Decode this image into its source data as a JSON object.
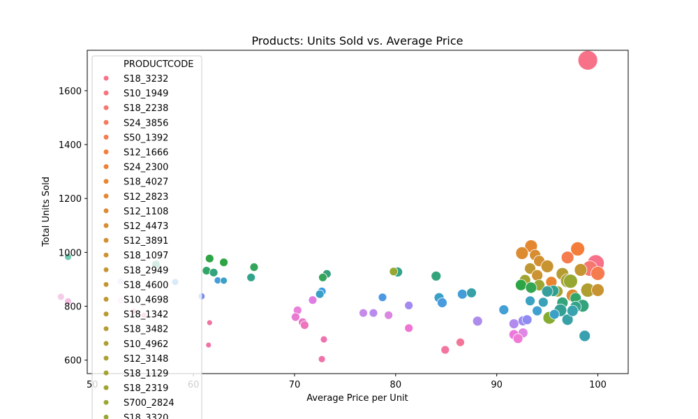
{
  "chart_data": {
    "type": "scatter",
    "title": "Products: Units Sold vs. Average Price",
    "xlabel": "Average Price per Unit",
    "ylabel": "Total Units Sold",
    "xlim": [
      49.5,
      103
    ],
    "ylim": [
      550,
      1750
    ],
    "xticks": [
      50,
      60,
      70,
      80,
      90,
      100
    ],
    "yticks": [
      600,
      800,
      1000,
      1200,
      1400,
      1600
    ],
    "grid": false,
    "legend": {
      "title": "PRODUCTCODE",
      "placement": "upper-left",
      "entries": [
        {
          "label": "S18_3232",
          "color": "#f77189"
        },
        {
          "label": "S10_1949",
          "color": "#f7737d"
        },
        {
          "label": "S18_2238",
          "color": "#f7766f"
        },
        {
          "label": "S24_3856",
          "color": "#f67960"
        },
        {
          "label": "S50_1392",
          "color": "#f67c4f"
        },
        {
          "label": "S12_1666",
          "color": "#f47e39"
        },
        {
          "label": "S24_2300",
          "color": "#ef8132"
        },
        {
          "label": "S18_4027",
          "color": "#e98531"
        },
        {
          "label": "S12_2823",
          "color": "#e38831"
        },
        {
          "label": "S12_1108",
          "color": "#dd8b31"
        },
        {
          "label": "S12_4473",
          "color": "#d88d31"
        },
        {
          "label": "S12_3891",
          "color": "#d29031"
        },
        {
          "label": "S18_1097",
          "color": "#cd9231"
        },
        {
          "label": "S18_2949",
          "color": "#c89431"
        },
        {
          "label": "S18_4600",
          "color": "#c39632"
        },
        {
          "label": "S10_4698",
          "color": "#be9832"
        },
        {
          "label": "S18_1342",
          "color": "#b99a32"
        },
        {
          "label": "S18_3482",
          "color": "#b49c32"
        },
        {
          "label": "S10_4962",
          "color": "#b09e32"
        },
        {
          "label": "S12_3148",
          "color": "#aba032"
        },
        {
          "label": "S18_1129",
          "color": "#a6a232"
        },
        {
          "label": "S18_2319",
          "color": "#a1a432"
        },
        {
          "label": "S700_2824",
          "color": "#9ca632"
        },
        {
          "label": "S18_3320",
          "color": "#97a832"
        }
      ]
    },
    "size_note": "marker size scales with total units sold",
    "points": [
      {
        "x": 99.0,
        "y": 1713,
        "color": "#f77189",
        "size": 14
      },
      {
        "x": 99.8,
        "y": 960,
        "color": "#f77189",
        "size": 12
      },
      {
        "x": 99.2,
        "y": 940,
        "color": "#f7766f",
        "size": 11
      },
      {
        "x": 100.0,
        "y": 922,
        "color": "#f67c4f",
        "size": 10
      },
      {
        "x": 98.0,
        "y": 1013,
        "color": "#f47e39",
        "size": 10
      },
      {
        "x": 97.0,
        "y": 981,
        "color": "#f67c4f",
        "size": 9
      },
      {
        "x": 93.4,
        "y": 1023,
        "color": "#e38831",
        "size": 9
      },
      {
        "x": 92.5,
        "y": 997,
        "color": "#dd8b31",
        "size": 9
      },
      {
        "x": 93.8,
        "y": 990,
        "color": "#d88d31",
        "size": 8
      },
      {
        "x": 94.2,
        "y": 968,
        "color": "#d29031",
        "size": 8
      },
      {
        "x": 95.0,
        "y": 948,
        "color": "#c89431",
        "size": 9
      },
      {
        "x": 93.3,
        "y": 940,
        "color": "#be9832",
        "size": 8
      },
      {
        "x": 96.5,
        "y": 920,
        "color": "#b49c32",
        "size": 9
      },
      {
        "x": 98.3,
        "y": 935,
        "color": "#c39632",
        "size": 9
      },
      {
        "x": 97.0,
        "y": 895,
        "color": "#aba032",
        "size": 10
      },
      {
        "x": 99.0,
        "y": 860,
        "color": "#b09e32",
        "size": 10
      },
      {
        "x": 100.0,
        "y": 860,
        "color": "#c89431",
        "size": 9
      },
      {
        "x": 97.5,
        "y": 840,
        "color": "#dd8b31",
        "size": 9
      },
      {
        "x": 95.4,
        "y": 890,
        "color": "#e98531",
        "size": 8
      },
      {
        "x": 94.0,
        "y": 915,
        "color": "#cd9231",
        "size": 8
      },
      {
        "x": 92.8,
        "y": 897,
        "color": "#a1a432",
        "size": 8
      },
      {
        "x": 96.0,
        "y": 855,
        "color": "#a6a232",
        "size": 8
      },
      {
        "x": 94.2,
        "y": 878,
        "color": "#9ca632",
        "size": 8
      },
      {
        "x": 92.4,
        "y": 879,
        "color": "#2ea545",
        "size": 8
      },
      {
        "x": 93.4,
        "y": 869,
        "color": "#34a552",
        "size": 8
      },
      {
        "x": 97.8,
        "y": 830,
        "color": "#32a668",
        "size": 8
      },
      {
        "x": 96.5,
        "y": 813,
        "color": "#33a47b",
        "size": 8
      },
      {
        "x": 98.5,
        "y": 802,
        "color": "#35a27e",
        "size": 9
      },
      {
        "x": 97.8,
        "y": 798,
        "color": "#33a38a",
        "size": 8
      },
      {
        "x": 96.3,
        "y": 785,
        "color": "#34a094",
        "size": 9
      },
      {
        "x": 95.6,
        "y": 857,
        "color": "#2ea18f",
        "size": 8
      },
      {
        "x": 95.0,
        "y": 855,
        "color": "#37a09d",
        "size": 8
      },
      {
        "x": 97.3,
        "y": 893,
        "color": "#97a832",
        "size": 10
      },
      {
        "x": 95.2,
        "y": 757,
        "color": "#85ab31",
        "size": 9
      },
      {
        "x": 97.0,
        "y": 750,
        "color": "#37a1a6",
        "size": 8
      },
      {
        "x": 98.7,
        "y": 690,
        "color": "#38a0b0",
        "size": 8
      },
      {
        "x": 97.5,
        "y": 783,
        "color": "#38a2af",
        "size": 8
      },
      {
        "x": 94.6,
        "y": 815,
        "color": "#3aa2b8",
        "size": 7
      },
      {
        "x": 93.3,
        "y": 820,
        "color": "#3ba2c1",
        "size": 7
      },
      {
        "x": 95.7,
        "y": 770,
        "color": "#3ba0c7",
        "size": 7
      },
      {
        "x": 94.0,
        "y": 783,
        "color": "#40a0d0",
        "size": 7
      },
      {
        "x": 90.7,
        "y": 787,
        "color": "#439fd6",
        "size": 7
      },
      {
        "x": 86.6,
        "y": 845,
        "color": "#449dd9",
        "size": 7
      },
      {
        "x": 87.5,
        "y": 850,
        "color": "#37a1a6",
        "size": 7
      },
      {
        "x": 84.3,
        "y": 832,
        "color": "#3ba0c7",
        "size": 7
      },
      {
        "x": 84.6,
        "y": 813,
        "color": "#499bdd",
        "size": 7
      },
      {
        "x": 84.0,
        "y": 912,
        "color": "#33a47b",
        "size": 7
      },
      {
        "x": 80.2,
        "y": 927,
        "color": "#33a38a",
        "size": 7
      },
      {
        "x": 79.8,
        "y": 929,
        "color": "#97a832",
        "size": 6
      },
      {
        "x": 78.7,
        "y": 833,
        "color": "#4d98e2",
        "size": 6
      },
      {
        "x": 73.2,
        "y": 920,
        "color": "#35a07c",
        "size": 6
      },
      {
        "x": 72.8,
        "y": 907,
        "color": "#34a55a",
        "size": 6
      },
      {
        "x": 72.7,
        "y": 855,
        "color": "#3b9ee0",
        "size": 6
      },
      {
        "x": 72.5,
        "y": 845,
        "color": "#3ba0c7",
        "size": 6
      },
      {
        "x": 66.0,
        "y": 945,
        "color": "#34a55a",
        "size": 6
      },
      {
        "x": 65.7,
        "y": 907,
        "color": "#33a38a",
        "size": 6
      },
      {
        "x": 63.0,
        "y": 963,
        "color": "#2ea545",
        "size": 6
      },
      {
        "x": 61.6,
        "y": 977,
        "color": "#2ea545",
        "size": 6
      },
      {
        "x": 61.3,
        "y": 932,
        "color": "#32a668",
        "size": 6
      },
      {
        "x": 62.0,
        "y": 925,
        "color": "#33a47b",
        "size": 6
      },
      {
        "x": 56.3,
        "y": 955,
        "color": "#33a47b",
        "size": 6
      },
      {
        "x": 62.4,
        "y": 896,
        "color": "#449dd9",
        "size": 5
      },
      {
        "x": 63.0,
        "y": 895,
        "color": "#3ba0c7",
        "size": 5
      },
      {
        "x": 58.2,
        "y": 890,
        "color": "#4d98e2",
        "size": 5
      },
      {
        "x": 60.8,
        "y": 837,
        "color": "#7b8cf0",
        "size": 5
      },
      {
        "x": 52.8,
        "y": 893,
        "color": "#d9c8f5",
        "size": 5
      },
      {
        "x": 47.6,
        "y": 983,
        "color": "#70c9b0",
        "size": 5
      },
      {
        "x": 52.8,
        "y": 822,
        "color": "#f8d3f2",
        "size": 5
      },
      {
        "x": 46.9,
        "y": 835,
        "color": "#f5cde7",
        "size": 5
      },
      {
        "x": 47.6,
        "y": 818,
        "color": "#f4bde4",
        "size": 5
      },
      {
        "x": 81.3,
        "y": 803,
        "color": "#a38af1",
        "size": 6
      },
      {
        "x": 77.8,
        "y": 775,
        "color": "#b98bee",
        "size": 6
      },
      {
        "x": 76.8,
        "y": 775,
        "color": "#c68be8",
        "size": 6
      },
      {
        "x": 79.3,
        "y": 767,
        "color": "#da87e0",
        "size": 6
      },
      {
        "x": 71.8,
        "y": 823,
        "color": "#e07de4",
        "size": 6
      },
      {
        "x": 70.3,
        "y": 785,
        "color": "#ea81da",
        "size": 6
      },
      {
        "x": 70.1,
        "y": 760,
        "color": "#e97ad1",
        "size": 6
      },
      {
        "x": 70.8,
        "y": 741,
        "color": "#ea78c9",
        "size": 6
      },
      {
        "x": 71.0,
        "y": 730,
        "color": "#ed75bc",
        "size": 6
      },
      {
        "x": 72.9,
        "y": 677,
        "color": "#ee74b1",
        "size": 5
      },
      {
        "x": 72.7,
        "y": 604,
        "color": "#ef73a8",
        "size": 5
      },
      {
        "x": 81.3,
        "y": 719,
        "color": "#f075d2",
        "size": 6
      },
      {
        "x": 84.9,
        "y": 638,
        "color": "#f276a0",
        "size": 6
      },
      {
        "x": 86.4,
        "y": 666,
        "color": "#f2769a",
        "size": 6
      },
      {
        "x": 88.1,
        "y": 745,
        "color": "#ad8cec",
        "size": 7
      },
      {
        "x": 91.7,
        "y": 735,
        "color": "#b38aee",
        "size": 7
      },
      {
        "x": 92.6,
        "y": 701,
        "color": "#de87e4",
        "size": 7
      },
      {
        "x": 91.7,
        "y": 695,
        "color": "#ed78dc",
        "size": 7
      },
      {
        "x": 92.1,
        "y": 680,
        "color": "#f07bd7",
        "size": 7
      },
      {
        "x": 92.6,
        "y": 746,
        "color": "#9b8bf2",
        "size": 7
      },
      {
        "x": 93.0,
        "y": 750,
        "color": "#8e8cf3",
        "size": 7
      },
      {
        "x": 61.5,
        "y": 656,
        "color": "#ef73a8",
        "size": 4
      },
      {
        "x": 61.6,
        "y": 739,
        "color": "#ef73a0",
        "size": 4
      },
      {
        "x": 55.1,
        "y": 767,
        "color": "#f274a0",
        "size": 4
      },
      {
        "x": 54.1,
        "y": 781,
        "color": "#f0759a",
        "size": 4
      }
    ]
  }
}
